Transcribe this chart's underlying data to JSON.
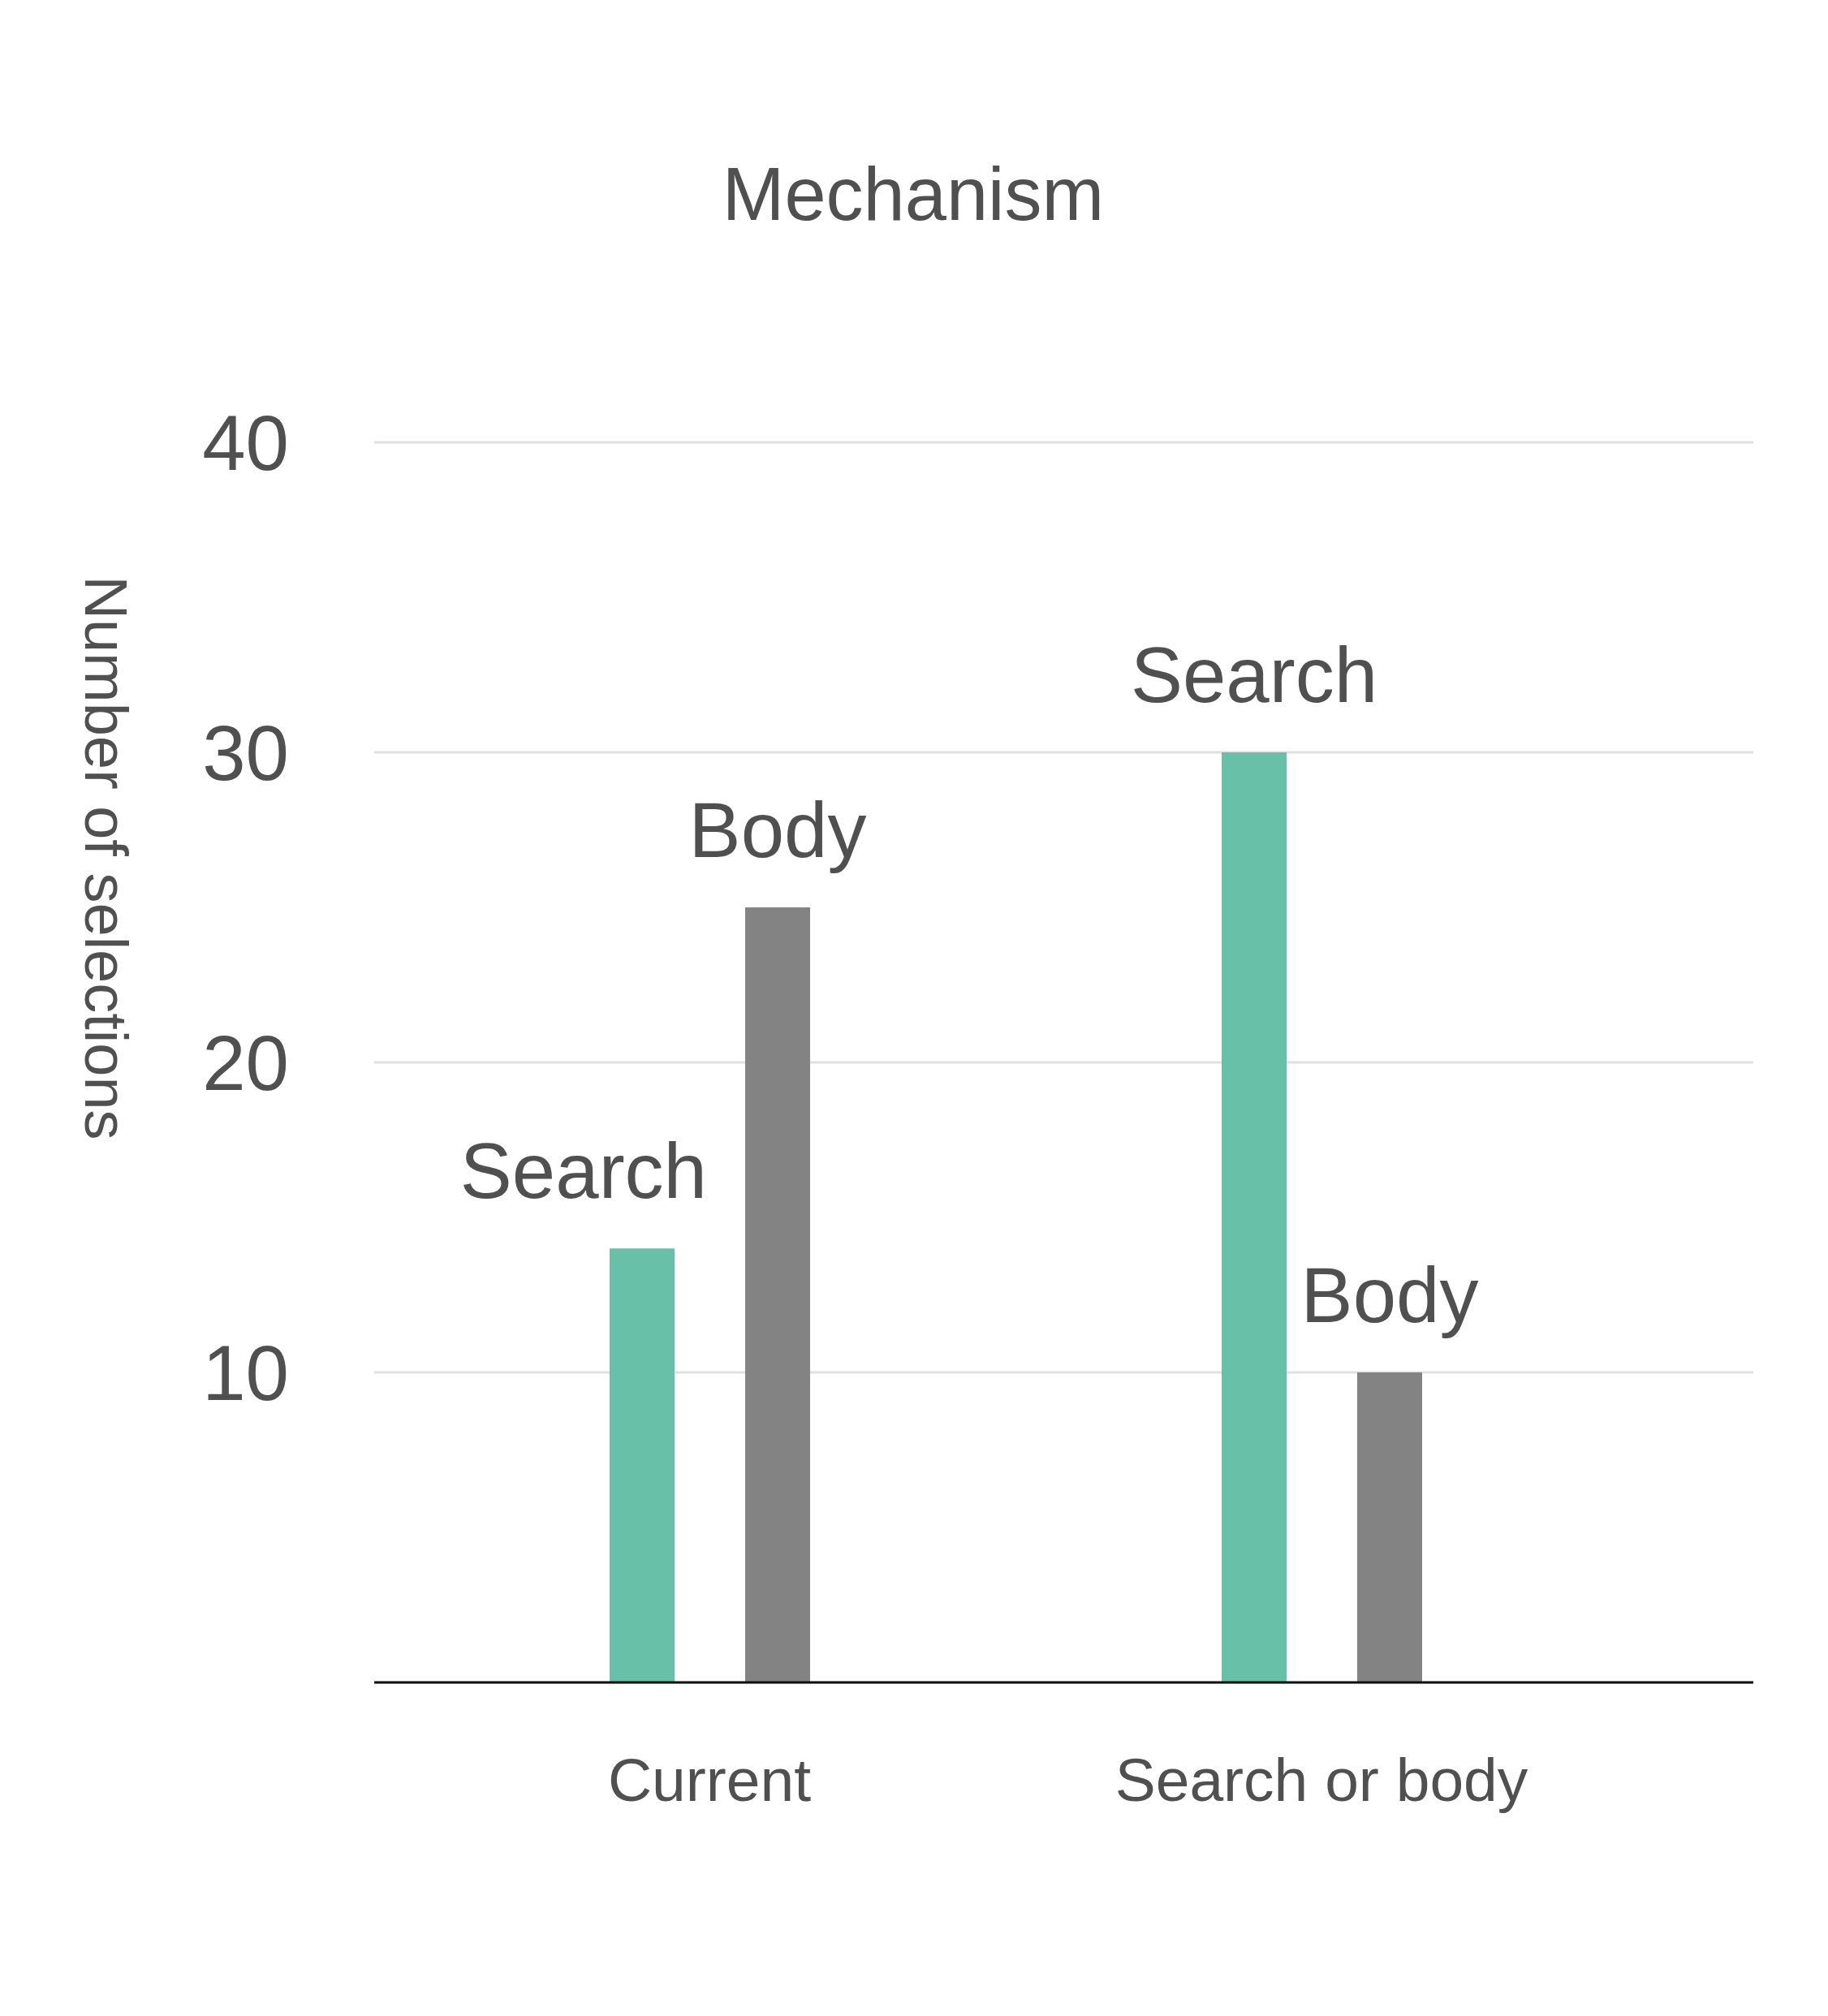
{
  "chart_data": {
    "type": "bar",
    "title": "Mechanism",
    "ylabel": "Number of selections",
    "categories": [
      "Current",
      "Search or body"
    ],
    "series": [
      {
        "name": "Search",
        "color": "#67c0a7",
        "values": [
          14,
          30
        ]
      },
      {
        "name": "Body",
        "color": "#838383",
        "values": [
          25,
          10
        ]
      }
    ],
    "ylim": [
      0,
      40
    ],
    "yticks": [
      10,
      20,
      30,
      40
    ],
    "grid": "y"
  }
}
